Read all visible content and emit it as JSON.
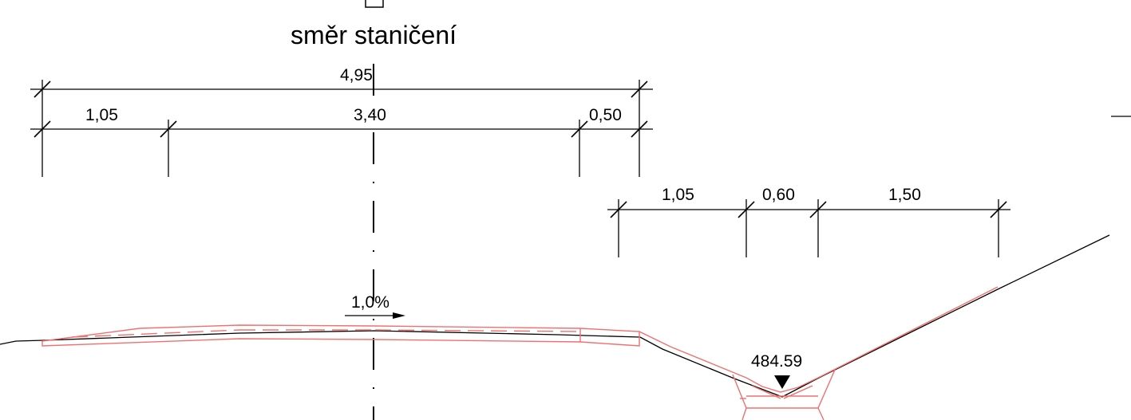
{
  "title": "směr staničení",
  "dimensions_top": {
    "overall": "4,95",
    "left": "1,05",
    "middle": "3,40",
    "right": "0,50"
  },
  "dimensions_ditch": {
    "left": "1,05",
    "middle": "0,60",
    "right": "1,50"
  },
  "slope_label": "1,0%",
  "elevation_label": "484.59",
  "colors": {
    "design_line": "#f07070",
    "terrain_line": "#000000"
  }
}
